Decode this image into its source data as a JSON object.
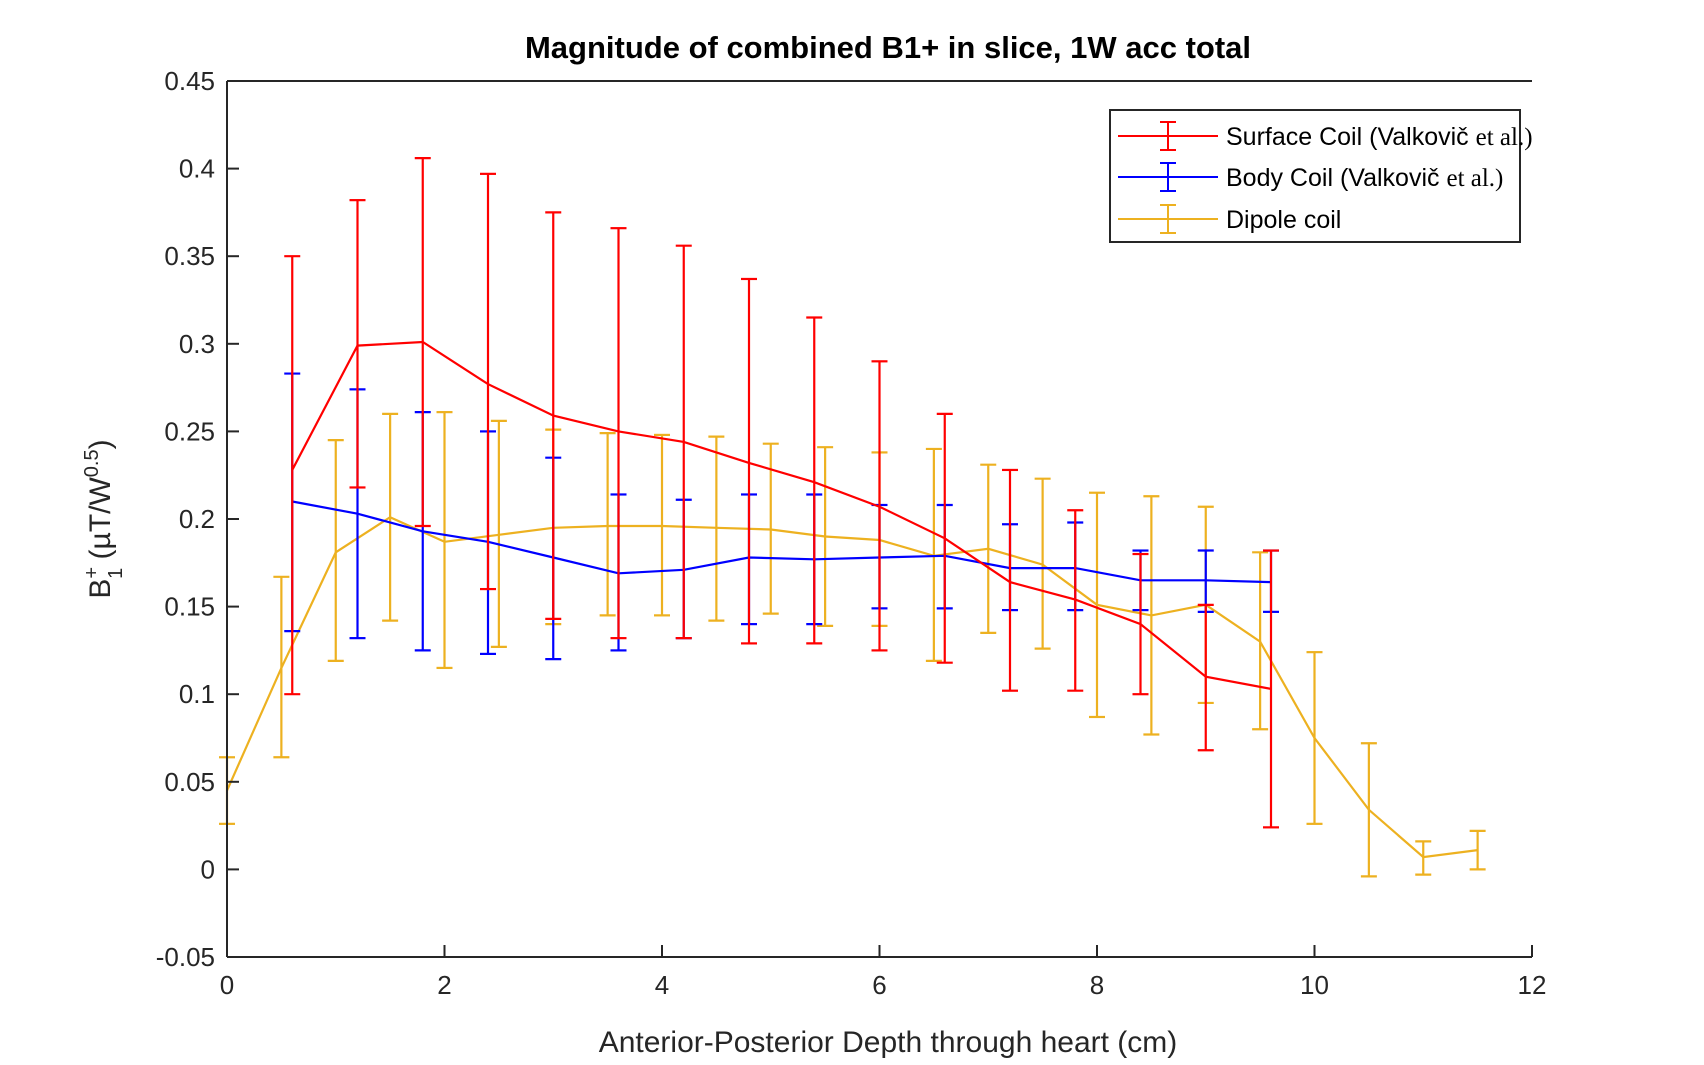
{
  "chart_data": {
    "type": "line",
    "title": "Magnitude of combined B1+ in slice, 1W acc total",
    "xlabel": "Anterior-Posterior Depth through heart (cm)",
    "ylabel_main": "B",
    "ylabel_sup": "+",
    "ylabel_sub": "1",
    "ylabel_units": " (µT/W",
    "ylabel_exp": "0.5",
    "ylabel_close": ")",
    "xlim": [
      0,
      12
    ],
    "ylim": [
      -0.05,
      0.45
    ],
    "xticks": [
      0,
      2,
      4,
      6,
      8,
      10,
      12
    ],
    "xtick_labels": [
      "0",
      "2",
      "4",
      "6",
      "8",
      "10",
      "12"
    ],
    "yticks": [
      -0.05,
      0,
      0.05,
      0.1,
      0.15,
      0.2,
      0.25,
      0.3,
      0.35,
      0.4,
      0.45
    ],
    "ytick_labels": [
      "-0.05",
      "0",
      "0.05",
      "0.1",
      "0.15",
      "0.2",
      "0.25",
      "0.3",
      "0.35",
      "0.4",
      "0.45"
    ],
    "legend_position": "top-right",
    "series": [
      {
        "name": "Surface Coil (Valkovič et al.)",
        "legend_sans": "Surface Coil (Valkovič",
        "legend_serif": "et al.)",
        "color": "#ff0000",
        "x": [
          0.6,
          1.2,
          1.8,
          2.4,
          3.0,
          3.6,
          4.2,
          4.8,
          5.4,
          6.0,
          6.6,
          7.2,
          7.8,
          8.4,
          9.0,
          9.6
        ],
        "y": [
          0.228,
          0.299,
          0.301,
          0.277,
          0.259,
          0.25,
          0.244,
          0.232,
          0.221,
          0.207,
          0.189,
          0.164,
          0.154,
          0.14,
          0.11,
          0.103
        ],
        "err_low": [
          0.1,
          0.218,
          0.196,
          0.16,
          0.143,
          0.132,
          0.132,
          0.129,
          0.129,
          0.125,
          0.118,
          0.102,
          0.102,
          0.1,
          0.068,
          0.024
        ],
        "err_high": [
          0.35,
          0.382,
          0.406,
          0.397,
          0.375,
          0.366,
          0.356,
          0.337,
          0.315,
          0.29,
          0.26,
          0.228,
          0.205,
          0.18,
          0.151,
          0.182
        ]
      },
      {
        "name": "Body Coil (Valkovič et al.)",
        "legend_sans": "Body Coil (Valkovič",
        "legend_serif": "et al.)",
        "color": "#0000ff",
        "x": [
          0.6,
          1.2,
          1.8,
          2.4,
          3.0,
          3.6,
          4.2,
          4.8,
          5.4,
          6.0,
          6.6,
          7.2,
          7.8,
          8.4,
          9.0,
          9.6
        ],
        "y": [
          0.21,
          0.203,
          0.193,
          0.187,
          0.178,
          0.169,
          0.171,
          0.178,
          0.177,
          0.178,
          0.179,
          0.172,
          0.172,
          0.165,
          0.165,
          0.164
        ],
        "err_low": [
          0.136,
          0.132,
          0.125,
          0.123,
          0.12,
          0.125,
          0.132,
          0.14,
          0.14,
          0.149,
          0.149,
          0.148,
          0.148,
          0.148,
          0.147,
          0.147
        ],
        "err_high": [
          0.283,
          0.274,
          0.261,
          0.25,
          0.235,
          0.214,
          0.211,
          0.214,
          0.214,
          0.208,
          0.208,
          0.197,
          0.198,
          0.182,
          0.182,
          0.182
        ]
      },
      {
        "name": "Dipole coil",
        "color": "#edb120",
        "x": [
          0.0,
          0.5,
          1.0,
          1.5,
          2.0,
          2.5,
          3.0,
          3.5,
          4.0,
          4.5,
          5.0,
          5.5,
          6.0,
          6.5,
          7.0,
          7.5,
          8.0,
          8.5,
          9.0,
          9.5,
          10.0,
          10.5,
          11.0,
          11.5
        ],
        "y": [
          0.045,
          0.115,
          0.181,
          0.201,
          0.187,
          0.191,
          0.195,
          0.196,
          0.196,
          0.195,
          0.194,
          0.19,
          0.188,
          0.179,
          0.183,
          0.174,
          0.151,
          0.145,
          0.151,
          0.13,
          0.075,
          0.034,
          0.007,
          0.011
        ],
        "err_low": [
          0.026,
          0.064,
          0.119,
          0.142,
          0.115,
          0.127,
          0.14,
          0.145,
          0.145,
          0.142,
          0.146,
          0.139,
          0.139,
          0.119,
          0.135,
          0.126,
          0.087,
          0.077,
          0.095,
          0.08,
          0.026,
          -0.004,
          -0.003,
          0.0
        ],
        "err_high": [
          0.064,
          0.167,
          0.245,
          0.26,
          0.261,
          0.256,
          0.251,
          0.249,
          0.248,
          0.247,
          0.243,
          0.241,
          0.238,
          0.24,
          0.231,
          0.223,
          0.215,
          0.213,
          0.207,
          0.181,
          0.124,
          0.072,
          0.016,
          0.022
        ]
      }
    ]
  }
}
